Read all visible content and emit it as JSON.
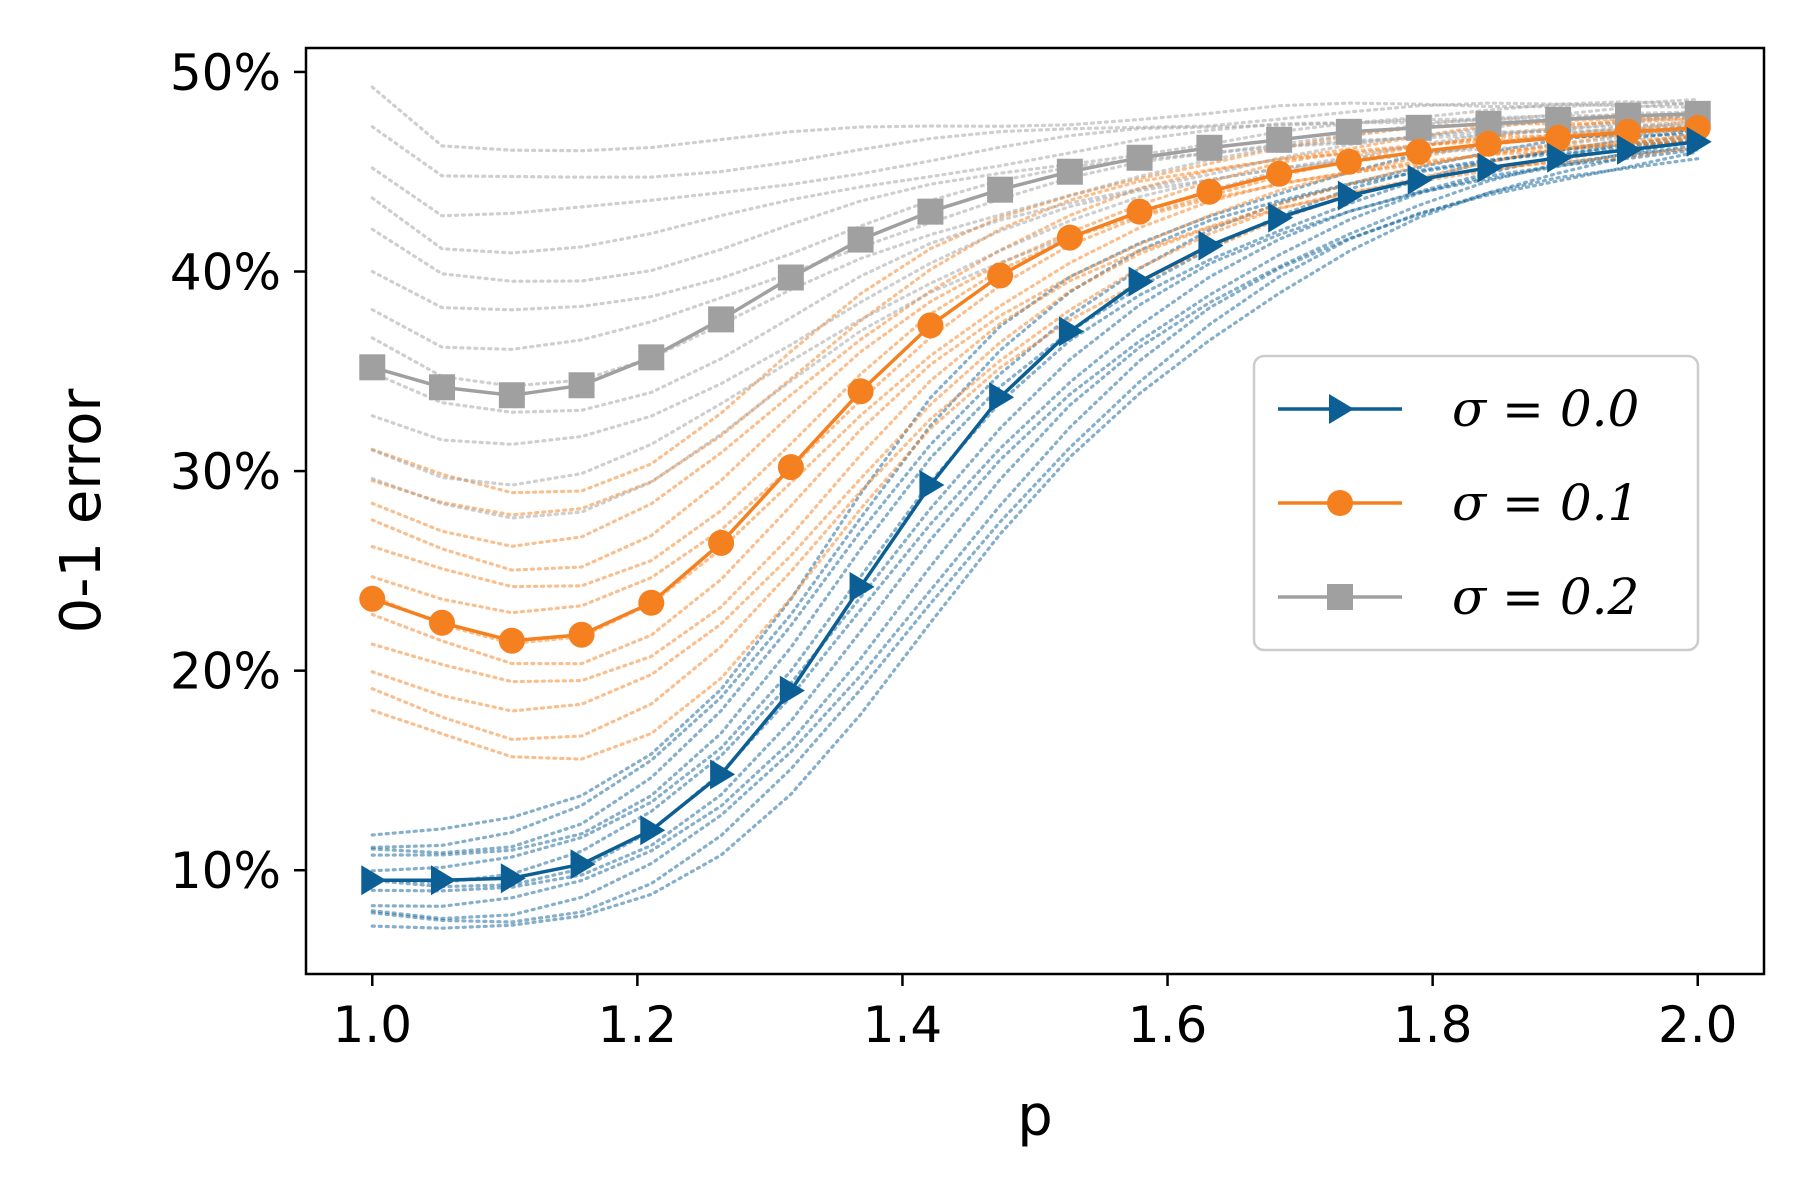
{
  "chart_data": {
    "type": "line",
    "title": "",
    "xlabel": "p",
    "ylabel": "0-1 error",
    "xlim": [
      0.95,
      2.05
    ],
    "ylim": [
      4.8,
      51.2
    ],
    "x_ticks": [
      1.0,
      1.2,
      1.4,
      1.6,
      1.8,
      2.0
    ],
    "x_tick_labels": [
      "1.0",
      "1.2",
      "1.4",
      "1.6",
      "1.8",
      "2.0"
    ],
    "y_ticks": [
      10,
      20,
      30,
      40,
      50
    ],
    "y_tick_labels": [
      "10%",
      "20%",
      "30%",
      "40%",
      "50%"
    ],
    "grid": false,
    "legend_position": "center-right",
    "x": [
      1.0,
      1.0526,
      1.1053,
      1.1579,
      1.2105,
      1.2632,
      1.3158,
      1.3684,
      1.4211,
      1.4737,
      1.5263,
      1.5789,
      1.6316,
      1.6842,
      1.7368,
      1.7895,
      1.8421,
      1.8947,
      1.9474,
      2.0
    ],
    "series": [
      {
        "name": "σ = 0.0",
        "legend_label": "σ = 0.0",
        "color": "#0b5f95",
        "marker": "triangle-right",
        "values": [
          9.5,
          9.5,
          9.6,
          10.3,
          12.0,
          14.8,
          19.0,
          24.2,
          29.3,
          33.7,
          37.0,
          39.5,
          41.3,
          42.7,
          43.8,
          44.6,
          45.2,
          45.7,
          46.1,
          46.5
        ],
        "band": {
          "low": [
            7.2,
            6.9,
            7.0,
            7.6,
            8.9,
            11.0,
            14.0,
            17.8,
            22.2,
            26.6,
            30.6,
            34.0,
            36.8,
            39.1,
            41.0,
            42.5,
            43.7,
            44.6,
            45.3,
            45.9
          ],
          "high": [
            11.8,
            11.9,
            12.4,
            13.6,
            15.9,
            19.3,
            23.8,
            28.9,
            33.5,
            37.0,
            39.6,
            41.5,
            43.0,
            44.1,
            45.0,
            45.7,
            46.2,
            46.6,
            46.9,
            47.1
          ]
        }
      },
      {
        "name": "σ = 0.1",
        "legend_label": "σ = 0.1",
        "color": "#f5801f",
        "marker": "circle",
        "values": [
          23.6,
          22.4,
          21.5,
          21.8,
          23.4,
          26.4,
          30.2,
          34.0,
          37.3,
          39.8,
          41.7,
          43.0,
          44.0,
          44.9,
          45.5,
          46.0,
          46.4,
          46.7,
          47.0,
          47.2
        ],
        "band": {
          "low": [
            17.8,
            16.6,
            15.6,
            15.7,
            17.1,
            19.8,
            23.6,
            27.9,
            31.9,
            35.1,
            37.7,
            39.7,
            41.3,
            42.6,
            43.6,
            44.4,
            45.1,
            45.6,
            46.0,
            46.4
          ],
          "high": [
            30.9,
            29.6,
            28.8,
            29.1,
            30.6,
            33.1,
            36.0,
            38.7,
            40.9,
            42.6,
            43.9,
            44.9,
            45.6,
            46.2,
            46.6,
            47.0,
            47.3,
            47.5,
            47.7,
            47.9
          ]
        }
      },
      {
        "name": "σ = 0.2",
        "legend_label": "σ = 0.2",
        "color": "#a0a0a0",
        "marker": "square",
        "values": [
          35.2,
          34.2,
          33.8,
          34.3,
          35.7,
          37.6,
          39.7,
          41.6,
          43.0,
          44.1,
          45.0,
          45.7,
          46.2,
          46.6,
          47.0,
          47.2,
          47.4,
          47.6,
          47.8,
          47.9
        ],
        "band": {
          "low": [
            29.4,
            28.3,
            27.8,
            28.2,
            29.6,
            31.8,
            34.3,
            36.8,
            38.9,
            40.6,
            42.0,
            43.1,
            44.0,
            44.8,
            45.4,
            45.9,
            46.3,
            46.6,
            46.9,
            47.2
          ],
          "high": [
            49.0,
            46.2,
            46.2,
            46.3,
            46.4,
            46.6,
            46.8,
            47.0,
            47.2,
            47.4,
            47.6,
            47.8,
            47.9,
            48.1,
            48.2,
            48.3,
            48.4,
            48.5,
            48.6,
            48.6
          ]
        }
      }
    ],
    "dotted_traces_per_series": 12
  }
}
